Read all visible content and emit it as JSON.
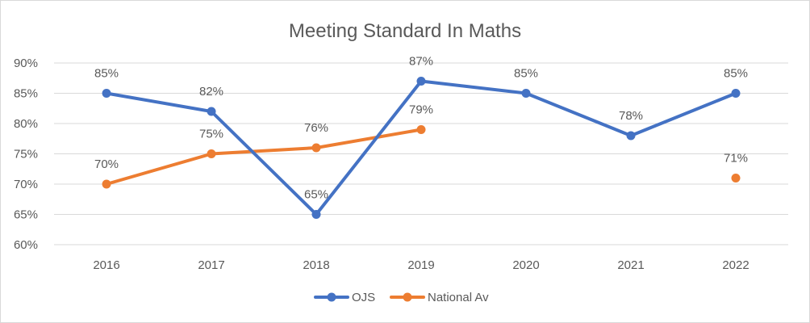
{
  "chart_data": {
    "type": "line",
    "title": "Meeting Standard In Maths",
    "categories": [
      "2016",
      "2017",
      "2018",
      "2019",
      "2020",
      "2021",
      "2022"
    ],
    "ylim": [
      0.6,
      0.9
    ],
    "yticks": [
      0.6,
      0.65,
      0.7,
      0.75,
      0.8,
      0.85,
      0.9
    ],
    "ytick_labels": [
      "60%",
      "65%",
      "70%",
      "75%",
      "80%",
      "85%",
      "90%"
    ],
    "grid": true,
    "legend_position": "bottom",
    "series": [
      {
        "name": "OJS",
        "color": "#4472c4",
        "values": [
          0.85,
          0.82,
          0.65,
          0.87,
          0.85,
          0.78,
          0.85
        ],
        "labels": [
          "85%",
          "82%",
          "65%",
          "87%",
          "85%",
          "78%",
          "85%"
        ]
      },
      {
        "name": "National Av",
        "color": "#ed7d31",
        "values": [
          0.7,
          0.75,
          0.76,
          0.79,
          null,
          null,
          0.71
        ],
        "labels": [
          "70%",
          "75%",
          "76%",
          "79%",
          null,
          null,
          "71%"
        ]
      }
    ]
  }
}
